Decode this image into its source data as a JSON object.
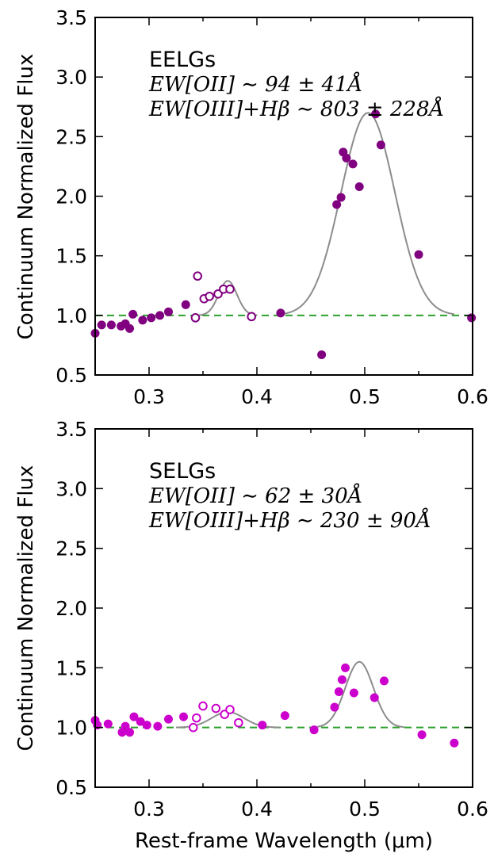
{
  "chart_data": [
    {
      "type": "scatter",
      "panel": "top",
      "sample_label": "EELGs",
      "ew_lines": [
        "EW[OII] ∼ 94 ± 41Å",
        "EW[OIII]+Hβ ∼ 803 ± 228Å"
      ],
      "xlabel": "",
      "ylabel": "Continuum Normalized Flux",
      "xlim": [
        0.25,
        0.6
      ],
      "ylim": [
        0.5,
        3.5
      ],
      "xticks": [
        "0.3",
        "0.4",
        "0.5",
        "0.6"
      ],
      "yticks": [
        "0.5",
        "1.0",
        "1.5",
        "2.0",
        "2.5",
        "3.0",
        "3.5"
      ],
      "marker_color": "#800080",
      "continuum_level": 1.0,
      "filled_points": {
        "x": [
          0.25,
          0.256,
          0.265,
          0.274,
          0.278,
          0.282,
          0.285,
          0.294,
          0.302,
          0.31,
          0.318,
          0.334,
          0.422,
          0.46,
          0.474,
          0.478,
          0.48,
          0.483,
          0.489,
          0.495,
          0.51,
          0.515,
          0.55,
          0.599
        ],
        "y": [
          0.85,
          0.92,
          0.92,
          0.91,
          0.93,
          0.89,
          1.01,
          0.96,
          0.98,
          1.0,
          1.03,
          1.09,
          1.02,
          0.67,
          1.93,
          1.99,
          2.37,
          2.32,
          2.27,
          2.08,
          2.69,
          2.43,
          1.51,
          0.98
        ]
      },
      "open_points": {
        "x": [
          0.343,
          0.345,
          0.351,
          0.356,
          0.364,
          0.369,
          0.375,
          0.395
        ],
        "y": [
          0.98,
          1.33,
          1.14,
          1.16,
          1.18,
          1.22,
          1.22,
          0.99
        ]
      },
      "fit_peaks": [
        {
          "center": 0.373,
          "amplitude": 0.29,
          "sigma": 0.0085
        },
        {
          "center": 0.503,
          "amplitude": 1.7,
          "sigma": 0.025
        }
      ]
    },
    {
      "type": "scatter",
      "panel": "bottom",
      "sample_label": "SELGs",
      "ew_lines": [
        "EW[OII] ∼ 62 ± 30Å",
        "EW[OIII]+Hβ ∼ 230 ± 90Å"
      ],
      "xlabel": "Rest-frame Wavelength (μm)",
      "ylabel": "Continuum Normalized Flux",
      "xlim": [
        0.25,
        0.6
      ],
      "ylim": [
        0.5,
        3.5
      ],
      "xticks": [
        "0.3",
        "0.4",
        "0.5",
        "0.6"
      ],
      "yticks": [
        "0.5",
        "1.0",
        "1.5",
        "2.0",
        "2.5",
        "3.0",
        "3.5"
      ],
      "marker_color": "#cc00cc",
      "continuum_level": 1.0,
      "filled_points": {
        "x": [
          0.25,
          0.252,
          0.262,
          0.275,
          0.278,
          0.282,
          0.286,
          0.292,
          0.298,
          0.308,
          0.318,
          0.332,
          0.405,
          0.426,
          0.453,
          0.472,
          0.476,
          0.479,
          0.482,
          0.49,
          0.509,
          0.518,
          0.553,
          0.583
        ],
        "y": [
          1.06,
          1.02,
          1.03,
          0.96,
          1.01,
          0.96,
          1.09,
          1.05,
          1.02,
          1.01,
          1.07,
          1.09,
          1.02,
          1.1,
          0.98,
          1.17,
          1.3,
          1.4,
          1.5,
          1.29,
          1.25,
          1.39,
          0.94,
          0.87
        ]
      },
      "open_points": {
        "x": [
          0.341,
          0.344,
          0.35,
          0.362,
          0.37,
          0.375,
          0.383
        ],
        "y": [
          1.0,
          1.08,
          1.18,
          1.16,
          1.11,
          1.15,
          1.04
        ]
      },
      "fit_peaks": [
        {
          "center": 0.373,
          "amplitude": 0.13,
          "sigma": 0.015
        },
        {
          "center": 0.495,
          "amplitude": 0.55,
          "sigma": 0.013
        }
      ]
    }
  ]
}
